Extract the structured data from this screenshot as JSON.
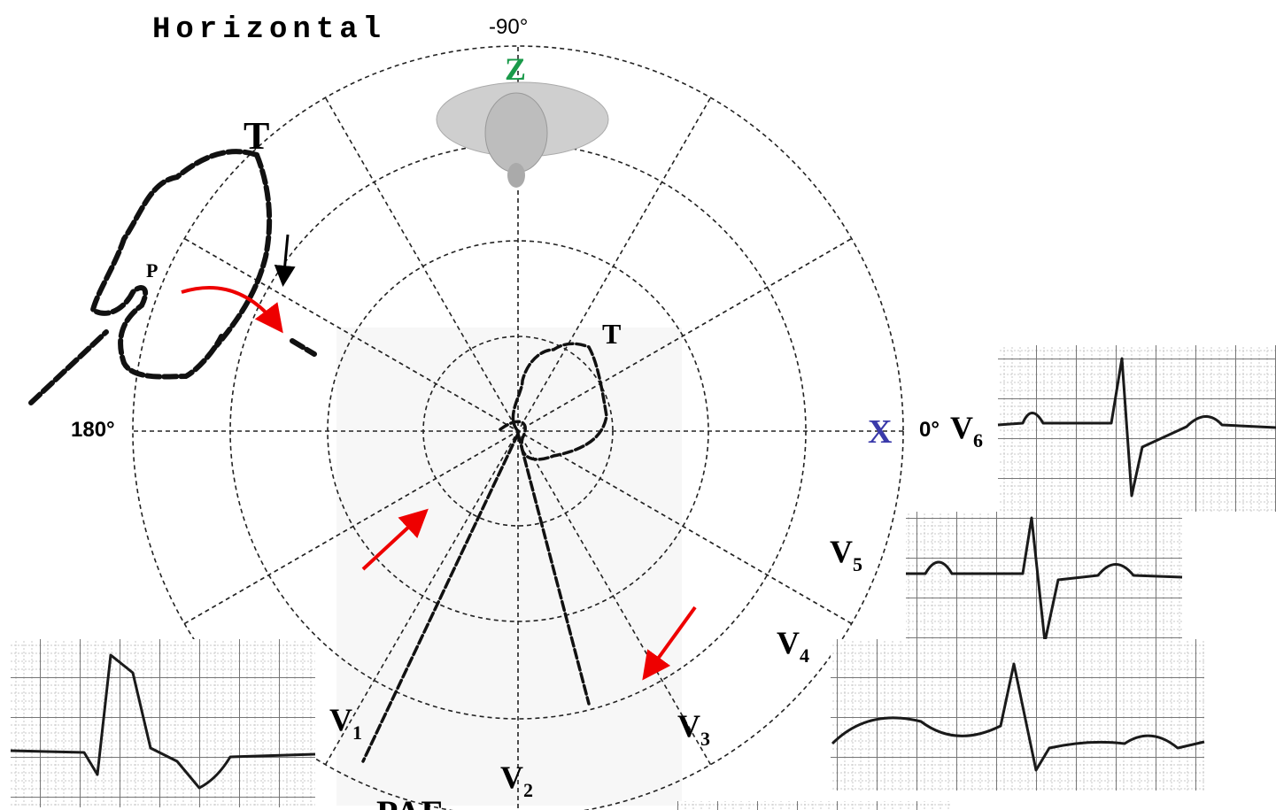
{
  "title": "Horizontal",
  "angles": {
    "top": "-90°",
    "left": "180°",
    "right": "0°"
  },
  "axes": {
    "z": "Z",
    "x": "X"
  },
  "loop_labels": {
    "outer_t": "T",
    "outer_p": "P",
    "inner_t": "T"
  },
  "leads": [
    {
      "name": "V",
      "sub": "6"
    },
    {
      "name": "V",
      "sub": "5"
    },
    {
      "name": "V",
      "sub": "4"
    },
    {
      "name": "V",
      "sub": "1"
    },
    {
      "name": "V",
      "sub": "2"
    },
    {
      "name": "V",
      "sub": "3"
    }
  ],
  "footer": "PAF"
}
